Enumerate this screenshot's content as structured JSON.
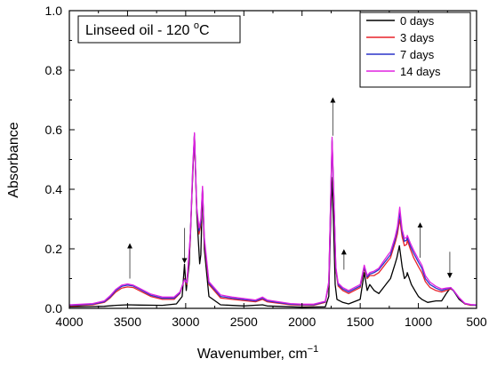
{
  "chart_data": {
    "type": "line",
    "title": "Linseed oil - 120 °C",
    "title_parts": {
      "main": "Linseed oil - 120 ",
      "degree": "o",
      "unit": "C"
    },
    "xlabel": "Wavenumber, cm",
    "xlabel_sup": "−1",
    "ylabel": "Absorbance",
    "xlim": [
      4000,
      500
    ],
    "x_reversed": true,
    "ylim": [
      0,
      1.0
    ],
    "x_ticks": [
      4000,
      3500,
      3000,
      2500,
      2000,
      1500,
      1000,
      500
    ],
    "y_ticks": [
      0.0,
      0.2,
      0.4,
      0.6,
      0.8,
      1.0
    ],
    "x_tick_labels": [
      "4000",
      "3500",
      "3000",
      "2500",
      "2000",
      "1500",
      "1000",
      "500"
    ],
    "y_tick_labels": [
      "0.0",
      "0.2",
      "0.4",
      "0.6",
      "0.8",
      "1.0"
    ],
    "grid": false,
    "legend_position": "top-right",
    "series": [
      {
        "name": "0 days",
        "color": "#000000",
        "points": [
          [
            4000,
            0.005
          ],
          [
            3800,
            0.006
          ],
          [
            3700,
            0.007
          ],
          [
            3600,
            0.01
          ],
          [
            3500,
            0.012
          ],
          [
            3400,
            0.011
          ],
          [
            3200,
            0.01
          ],
          [
            3080,
            0.015
          ],
          [
            3030,
            0.04
          ],
          [
            3010,
            0.148
          ],
          [
            2995,
            0.06
          ],
          [
            2970,
            0.15
          ],
          [
            2950,
            0.35
          ],
          [
            2925,
            0.585
          ],
          [
            2905,
            0.32
          ],
          [
            2880,
            0.15
          ],
          [
            2870,
            0.18
          ],
          [
            2855,
            0.405
          ],
          [
            2840,
            0.2
          ],
          [
            2800,
            0.04
          ],
          [
            2700,
            0.012
          ],
          [
            2500,
            0.008
          ],
          [
            2340,
            0.012
          ],
          [
            2300,
            0.008
          ],
          [
            2000,
            0.004
          ],
          [
            1800,
            0.005
          ],
          [
            1770,
            0.04
          ],
          [
            1745,
            0.44
          ],
          [
            1730,
            0.3
          ],
          [
            1715,
            0.08
          ],
          [
            1700,
            0.03
          ],
          [
            1650,
            0.02
          ],
          [
            1600,
            0.015
          ],
          [
            1500,
            0.03
          ],
          [
            1465,
            0.12
          ],
          [
            1440,
            0.06
          ],
          [
            1418,
            0.08
          ],
          [
            1380,
            0.06
          ],
          [
            1340,
            0.05
          ],
          [
            1300,
            0.07
          ],
          [
            1260,
            0.09
          ],
          [
            1240,
            0.1
          ],
          [
            1200,
            0.15
          ],
          [
            1185,
            0.17
          ],
          [
            1163,
            0.21
          ],
          [
            1140,
            0.14
          ],
          [
            1120,
            0.1
          ],
          [
            1100,
            0.11
          ],
          [
            1095,
            0.12
          ],
          [
            1060,
            0.08
          ],
          [
            1030,
            0.06
          ],
          [
            1000,
            0.04
          ],
          [
            970,
            0.03
          ],
          [
            920,
            0.02
          ],
          [
            850,
            0.025
          ],
          [
            800,
            0.025
          ],
          [
            760,
            0.05
          ],
          [
            722,
            0.07
          ],
          [
            700,
            0.06
          ],
          [
            650,
            0.03
          ],
          [
            600,
            0.015
          ],
          [
            550,
            0.012
          ],
          [
            500,
            0.01
          ]
        ]
      },
      {
        "name": "3 days",
        "color": "#e8222a",
        "points": [
          [
            4000,
            0.008
          ],
          [
            3800,
            0.012
          ],
          [
            3700,
            0.02
          ],
          [
            3650,
            0.035
          ],
          [
            3600,
            0.055
          ],
          [
            3550,
            0.068
          ],
          [
            3500,
            0.072
          ],
          [
            3450,
            0.07
          ],
          [
            3400,
            0.06
          ],
          [
            3300,
            0.04
          ],
          [
            3200,
            0.03
          ],
          [
            3100,
            0.03
          ],
          [
            3050,
            0.05
          ],
          [
            3010,
            0.1
          ],
          [
            2990,
            0.08
          ],
          [
            2960,
            0.23
          ],
          [
            2940,
            0.45
          ],
          [
            2925,
            0.58
          ],
          [
            2905,
            0.33
          ],
          [
            2885,
            0.25
          ],
          [
            2870,
            0.28
          ],
          [
            2855,
            0.4
          ],
          [
            2840,
            0.22
          ],
          [
            2800,
            0.08
          ],
          [
            2700,
            0.035
          ],
          [
            2600,
            0.03
          ],
          [
            2400,
            0.022
          ],
          [
            2340,
            0.03
          ],
          [
            2300,
            0.022
          ],
          [
            2100,
            0.012
          ],
          [
            2000,
            0.01
          ],
          [
            1900,
            0.01
          ],
          [
            1800,
            0.02
          ],
          [
            1770,
            0.08
          ],
          [
            1742,
            0.56
          ],
          [
            1725,
            0.35
          ],
          [
            1710,
            0.13
          ],
          [
            1690,
            0.075
          ],
          [
            1650,
            0.06
          ],
          [
            1600,
            0.05
          ],
          [
            1500,
            0.07
          ],
          [
            1465,
            0.135
          ],
          [
            1440,
            0.1
          ],
          [
            1418,
            0.11
          ],
          [
            1380,
            0.11
          ],
          [
            1340,
            0.12
          ],
          [
            1300,
            0.14
          ],
          [
            1260,
            0.16
          ],
          [
            1240,
            0.17
          ],
          [
            1200,
            0.22
          ],
          [
            1180,
            0.25
          ],
          [
            1160,
            0.3
          ],
          [
            1140,
            0.24
          ],
          [
            1120,
            0.21
          ],
          [
            1100,
            0.215
          ],
          [
            1095,
            0.23
          ],
          [
            1070,
            0.2
          ],
          [
            1040,
            0.17
          ],
          [
            1000,
            0.14
          ],
          [
            970,
            0.12
          ],
          [
            940,
            0.09
          ],
          [
            900,
            0.07
          ],
          [
            850,
            0.06
          ],
          [
            800,
            0.055
          ],
          [
            760,
            0.06
          ],
          [
            722,
            0.065
          ],
          [
            700,
            0.06
          ],
          [
            650,
            0.035
          ],
          [
            600,
            0.015
          ],
          [
            550,
            0.01
          ],
          [
            500,
            0.01
          ]
        ]
      },
      {
        "name": "7 days",
        "color": "#2a34c8",
        "points": [
          [
            4000,
            0.01
          ],
          [
            3800,
            0.014
          ],
          [
            3700,
            0.022
          ],
          [
            3650,
            0.038
          ],
          [
            3600,
            0.06
          ],
          [
            3550,
            0.074
          ],
          [
            3500,
            0.078
          ],
          [
            3450,
            0.075
          ],
          [
            3400,
            0.065
          ],
          [
            3300,
            0.044
          ],
          [
            3200,
            0.034
          ],
          [
            3100,
            0.034
          ],
          [
            3050,
            0.052
          ],
          [
            3010,
            0.098
          ],
          [
            2990,
            0.085
          ],
          [
            2960,
            0.24
          ],
          [
            2940,
            0.46
          ],
          [
            2925,
            0.585
          ],
          [
            2905,
            0.335
          ],
          [
            2885,
            0.26
          ],
          [
            2870,
            0.29
          ],
          [
            2855,
            0.405
          ],
          [
            2840,
            0.23
          ],
          [
            2800,
            0.085
          ],
          [
            2700,
            0.04
          ],
          [
            2600,
            0.034
          ],
          [
            2400,
            0.025
          ],
          [
            2340,
            0.034
          ],
          [
            2300,
            0.025
          ],
          [
            2100,
            0.014
          ],
          [
            2000,
            0.012
          ],
          [
            1900,
            0.012
          ],
          [
            1800,
            0.022
          ],
          [
            1770,
            0.085
          ],
          [
            1742,
            0.565
          ],
          [
            1725,
            0.355
          ],
          [
            1710,
            0.135
          ],
          [
            1690,
            0.08
          ],
          [
            1650,
            0.065
          ],
          [
            1600,
            0.055
          ],
          [
            1500,
            0.075
          ],
          [
            1465,
            0.14
          ],
          [
            1440,
            0.105
          ],
          [
            1418,
            0.115
          ],
          [
            1380,
            0.12
          ],
          [
            1340,
            0.13
          ],
          [
            1300,
            0.15
          ],
          [
            1260,
            0.17
          ],
          [
            1240,
            0.18
          ],
          [
            1200,
            0.23
          ],
          [
            1180,
            0.265
          ],
          [
            1160,
            0.32
          ],
          [
            1140,
            0.255
          ],
          [
            1120,
            0.225
          ],
          [
            1100,
            0.23
          ],
          [
            1095,
            0.24
          ],
          [
            1070,
            0.21
          ],
          [
            1040,
            0.185
          ],
          [
            1000,
            0.155
          ],
          [
            970,
            0.135
          ],
          [
            940,
            0.1
          ],
          [
            900,
            0.08
          ],
          [
            850,
            0.068
          ],
          [
            800,
            0.06
          ],
          [
            760,
            0.065
          ],
          [
            722,
            0.068
          ],
          [
            700,
            0.06
          ],
          [
            650,
            0.035
          ],
          [
            600,
            0.016
          ],
          [
            550,
            0.012
          ],
          [
            500,
            0.01
          ]
        ]
      },
      {
        "name": "14 days",
        "color": "#e022e0",
        "points": [
          [
            4000,
            0.012
          ],
          [
            3800,
            0.016
          ],
          [
            3700,
            0.025
          ],
          [
            3650,
            0.042
          ],
          [
            3600,
            0.064
          ],
          [
            3550,
            0.078
          ],
          [
            3500,
            0.082
          ],
          [
            3450,
            0.078
          ],
          [
            3400,
            0.068
          ],
          [
            3300,
            0.048
          ],
          [
            3200,
            0.038
          ],
          [
            3100,
            0.038
          ],
          [
            3050,
            0.055
          ],
          [
            3010,
            0.095
          ],
          [
            2990,
            0.088
          ],
          [
            2960,
            0.25
          ],
          [
            2940,
            0.47
          ],
          [
            2925,
            0.59
          ],
          [
            2905,
            0.34
          ],
          [
            2885,
            0.27
          ],
          [
            2870,
            0.3
          ],
          [
            2855,
            0.41
          ],
          [
            2840,
            0.24
          ],
          [
            2800,
            0.09
          ],
          [
            2700,
            0.045
          ],
          [
            2600,
            0.038
          ],
          [
            2400,
            0.028
          ],
          [
            2340,
            0.038
          ],
          [
            2300,
            0.028
          ],
          [
            2100,
            0.016
          ],
          [
            2000,
            0.014
          ],
          [
            1900,
            0.014
          ],
          [
            1800,
            0.024
          ],
          [
            1770,
            0.09
          ],
          [
            1742,
            0.575
          ],
          [
            1725,
            0.36
          ],
          [
            1710,
            0.14
          ],
          [
            1690,
            0.085
          ],
          [
            1650,
            0.07
          ],
          [
            1600,
            0.06
          ],
          [
            1500,
            0.08
          ],
          [
            1465,
            0.145
          ],
          [
            1440,
            0.11
          ],
          [
            1418,
            0.12
          ],
          [
            1380,
            0.125
          ],
          [
            1340,
            0.135
          ],
          [
            1300,
            0.158
          ],
          [
            1260,
            0.18
          ],
          [
            1240,
            0.19
          ],
          [
            1200,
            0.24
          ],
          [
            1180,
            0.275
          ],
          [
            1160,
            0.34
          ],
          [
            1140,
            0.265
          ],
          [
            1120,
            0.235
          ],
          [
            1100,
            0.238
          ],
          [
            1095,
            0.245
          ],
          [
            1070,
            0.22
          ],
          [
            1040,
            0.195
          ],
          [
            1000,
            0.165
          ],
          [
            970,
            0.145
          ],
          [
            940,
            0.11
          ],
          [
            900,
            0.088
          ],
          [
            850,
            0.074
          ],
          [
            800,
            0.065
          ],
          [
            760,
            0.068
          ],
          [
            722,
            0.07
          ],
          [
            700,
            0.062
          ],
          [
            650,
            0.036
          ],
          [
            600,
            0.017
          ],
          [
            550,
            0.013
          ],
          [
            500,
            0.012
          ]
        ]
      }
    ],
    "annotations": [
      {
        "type": "arrow",
        "x": 3480,
        "from": 0.1,
        "to": 0.21,
        "direction": "up"
      },
      {
        "type": "arrow",
        "x": 3010,
        "from": 0.27,
        "to": 0.16,
        "direction": "down"
      },
      {
        "type": "arrow",
        "x": 1735,
        "from": 0.58,
        "to": 0.7,
        "direction": "up"
      },
      {
        "type": "arrow",
        "x": 1640,
        "from": 0.13,
        "to": 0.19,
        "direction": "up"
      },
      {
        "type": "arrow",
        "x": 985,
        "from": 0.17,
        "to": 0.28,
        "direction": "up"
      },
      {
        "type": "arrow",
        "x": 730,
        "from": 0.19,
        "to": 0.11,
        "direction": "down"
      }
    ]
  }
}
